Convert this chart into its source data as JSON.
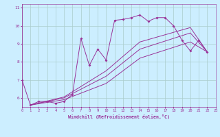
{
  "xlabel": "Windchill (Refroidissement éolien,°C)",
  "bg_color": "#cceeff",
  "line_color": "#993399",
  "grid_color": "#aacccc",
  "xlim": [
    0,
    23
  ],
  "ylim": [
    5.5,
    11.2
  ],
  "xticks": [
    0,
    1,
    2,
    3,
    4,
    5,
    6,
    7,
    8,
    9,
    10,
    11,
    12,
    13,
    14,
    15,
    16,
    17,
    18,
    19,
    20,
    21,
    22,
    23
  ],
  "yticks": [
    6,
    7,
    8,
    9,
    10,
    11
  ],
  "lines": [
    {
      "x": [
        0,
        1,
        2,
        3,
        4,
        5,
        6,
        7,
        8,
        9,
        10,
        11,
        12,
        13,
        14,
        15,
        16,
        17,
        18,
        19,
        20,
        21,
        22
      ],
      "y": [
        7.0,
        5.6,
        5.8,
        5.8,
        5.7,
        5.8,
        6.2,
        9.3,
        7.8,
        8.7,
        8.1,
        10.3,
        10.35,
        10.45,
        10.6,
        10.25,
        10.45,
        10.45,
        10.0,
        9.2,
        8.6,
        9.2,
        8.55
      ],
      "marker": true
    },
    {
      "x": [
        1,
        5,
        10,
        14,
        20,
        22
      ],
      "y": [
        5.6,
        6.05,
        7.5,
        9.1,
        9.9,
        8.55
      ],
      "marker": false
    },
    {
      "x": [
        1,
        5,
        10,
        14,
        20,
        22
      ],
      "y": [
        5.6,
        6.0,
        7.2,
        8.7,
        9.6,
        8.55
      ],
      "marker": false
    },
    {
      "x": [
        1,
        5,
        10,
        14,
        20,
        22
      ],
      "y": [
        5.6,
        5.9,
        6.8,
        8.2,
        9.1,
        8.55
      ],
      "marker": false
    }
  ]
}
